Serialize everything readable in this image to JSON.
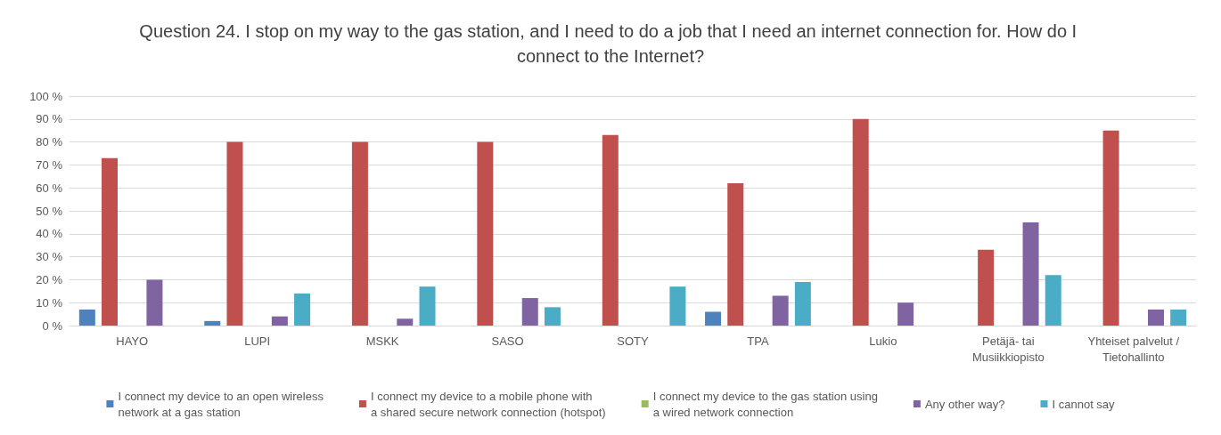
{
  "chart_data": {
    "type": "bar",
    "title": "Question 24. I stop on my way to the gas station, and I need to do a job that I need an internet connection for. How do I connect to the Internet?",
    "categories": [
      "HAYO",
      "LUPI",
      "MSKK",
      "SASO",
      "SOTY",
      "TPA",
      "Lukio",
      "Petäjä- tai\nMusiikkiopisto",
      "Yhteiset palvelut /\nTietohallinto"
    ],
    "series": [
      {
        "name": "I connect my device to an open wireless\nnetwork at a gas station",
        "color": "#4f81bd",
        "values": [
          7,
          2,
          0,
          0,
          0,
          6,
          0,
          0,
          0
        ]
      },
      {
        "name": "I connect my device to a mobile phone with\na shared secure network connection (hotspot)",
        "color": "#c0504d",
        "values": [
          73,
          80,
          80,
          80,
          83,
          62,
          90,
          33,
          85
        ]
      },
      {
        "name": "I connect my device to the gas station using\na wired network connection",
        "color": "#9bbb59",
        "values": [
          0,
          0,
          0,
          0,
          0,
          0,
          0,
          0,
          0
        ]
      },
      {
        "name": "Any other way?",
        "color": "#8064a2",
        "values": [
          20,
          4,
          3,
          12,
          0,
          13,
          10,
          45,
          7
        ]
      },
      {
        "name": "I cannot say",
        "color": "#4bacc6",
        "values": [
          0,
          14,
          17,
          8,
          17,
          19,
          0,
          22,
          7
        ]
      }
    ],
    "ylim": [
      0,
      100
    ],
    "yticks": [
      {
        "value": 0,
        "label": "0 %"
      },
      {
        "value": 10,
        "label": "10 %"
      },
      {
        "value": 20,
        "label": "20 %"
      },
      {
        "value": 30,
        "label": "30 %"
      },
      {
        "value": 40,
        "label": "40 %"
      },
      {
        "value": 50,
        "label": "50 %"
      },
      {
        "value": 60,
        "label": "60 %"
      },
      {
        "value": 70,
        "label": "70 %"
      },
      {
        "value": 80,
        "label": "80 %"
      },
      {
        "value": 90,
        "label": "90 %"
      },
      {
        "value": 100,
        "label": "100 %"
      }
    ],
    "grid": true,
    "legend": "bottom"
  }
}
